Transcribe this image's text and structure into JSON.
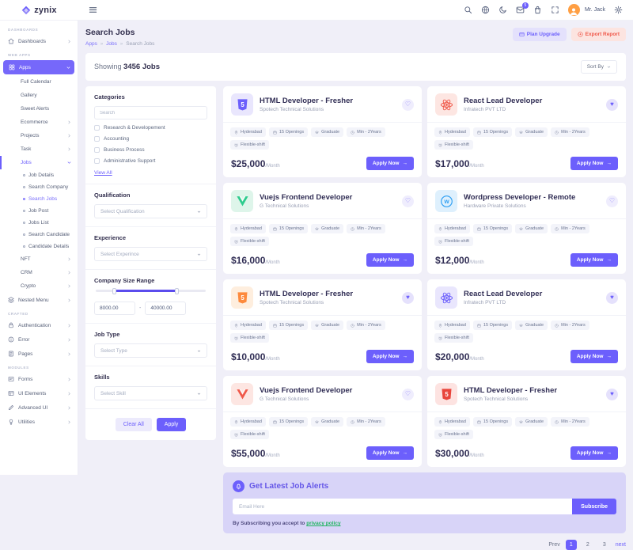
{
  "brand": {
    "name": "zynix",
    "logo_icon": "diamond-logo-icon"
  },
  "navbar": {
    "menu_icon": "hamburger-icon",
    "icons": [
      "search-icon",
      "language-icon",
      "moon-icon",
      "messages-icon",
      "cart-icon",
      "fullscreen-icon"
    ],
    "badge_count": "5",
    "badge_on": "messages-icon",
    "user_name": "Mr. Jack",
    "settings_icon": "settings-icon"
  },
  "sidebar": {
    "sections": [
      {
        "label": "DASHBOARDS",
        "items": [
          {
            "label": "Dashboards",
            "icon": "home-icon",
            "chevron": "right"
          }
        ]
      },
      {
        "label": "WEB APPS",
        "items": [
          {
            "label": "Apps",
            "icon": "grid-icon",
            "chevron": "down",
            "active": true
          },
          {
            "label": "Full Calendar",
            "indent": 1
          },
          {
            "label": "Gallery",
            "indent": 1
          },
          {
            "label": "Sweet Alerts",
            "indent": 1
          },
          {
            "label": "Ecommerce",
            "indent": 1,
            "chevron": "right"
          },
          {
            "label": "Projects",
            "indent": 1,
            "chevron": "right"
          },
          {
            "label": "Task",
            "indent": 1,
            "chevron": "right"
          },
          {
            "label": "Jobs",
            "indent": 1,
            "chevron": "down",
            "open": true
          },
          {
            "label": "Job Details",
            "indent": 2
          },
          {
            "label": "Search Company",
            "indent": 2
          },
          {
            "label": "Search Jobs",
            "indent": 2,
            "current": true
          },
          {
            "label": "Job Post",
            "indent": 2
          },
          {
            "label": "Jobs List",
            "indent": 2
          },
          {
            "label": "Search Candidate",
            "indent": 2
          },
          {
            "label": "Candidate Details",
            "indent": 2
          },
          {
            "label": "NFT",
            "indent": 1,
            "chevron": "right"
          },
          {
            "label": "CRM",
            "indent": 1,
            "chevron": "right"
          },
          {
            "label": "Crypto",
            "indent": 1,
            "chevron": "right"
          },
          {
            "label": "Nested Menu",
            "icon": "layers-icon",
            "chevron": "right"
          }
        ]
      },
      {
        "label": "CRAFTED",
        "items": [
          {
            "label": "Authentication",
            "icon": "lock-icon",
            "chevron": "right"
          },
          {
            "label": "Error",
            "icon": "info-icon",
            "chevron": "right"
          },
          {
            "label": "Pages",
            "icon": "pages-icon",
            "chevron": "right"
          }
        ]
      },
      {
        "label": "MODULES",
        "items": [
          {
            "label": "Forms",
            "icon": "forms-icon",
            "chevron": "right"
          },
          {
            "label": "UI Elements",
            "icon": "ui-icon",
            "chevron": "right"
          },
          {
            "label": "Advanced UI",
            "icon": "pen-icon",
            "chevron": "right"
          },
          {
            "label": "Utilities",
            "icon": "bulb-icon",
            "chevron": "right"
          }
        ]
      }
    ]
  },
  "page": {
    "title": "Search Jobs",
    "breadcrumb": [
      "Apps",
      "Jobs",
      "Search Jobs"
    ],
    "breadcrumb_separator": "»",
    "plan_upgrade_label": "Plan Upgrade",
    "export_report_label": "Export Report",
    "showing_prefix": "Showing",
    "showing_count": "3456 Jobs",
    "sort_by_label": "Sort By"
  },
  "filters": {
    "categories": {
      "title": "Categories",
      "search_placeholder": "Search",
      "options": [
        "Research & Developement",
        "Accounting",
        "Business Process",
        "Administrative Support"
      ],
      "view_all_label": "View All"
    },
    "qualification": {
      "title": "Qualification",
      "placeholder": "Select Qualification"
    },
    "experience": {
      "title": "Experience",
      "placeholder": "Select Experince"
    },
    "company_size": {
      "title": "Company Size Range",
      "min": "8000.00",
      "max": "40000.00",
      "dash": "-"
    },
    "job_type": {
      "title": "Job Type",
      "placeholder": "Select Type"
    },
    "skills": {
      "title": "Skills",
      "placeholder": "Select Skill"
    },
    "clear_label": "Clear All",
    "apply_label": "Apply"
  },
  "job_badges": [
    {
      "icon": "location-icon",
      "label": "Hyderabad"
    },
    {
      "icon": "calendar-icon",
      "label": "15 Openings"
    },
    {
      "icon": "graduate-icon",
      "label": "Graduate"
    },
    {
      "icon": "clock-icon",
      "label": "Min - 2Years"
    },
    {
      "icon": "alarm-icon",
      "label": "Flexible-shift"
    }
  ],
  "apply_label": "Apply Now",
  "apply_arrow": "→",
  "jobs": [
    {
      "title": "HTML Developer - Fresher",
      "company": "Spotech Technical Solutions",
      "icon": "html5-icon",
      "color": "#6c5ffc",
      "bg": "#e9e6fd",
      "price": "$25,000",
      "per": "/Month",
      "favorited": false
    },
    {
      "title": "React Lead Developer",
      "company": "Infratech PVT LTD",
      "icon": "react-icon",
      "color": "#f0594a",
      "bg": "#fde6e2",
      "price": "$17,000",
      "per": "/Month",
      "favorited": true
    },
    {
      "title": "Vuejs Frontend Developer",
      "company": "G Technical Solutions",
      "icon": "vuejs-icon",
      "color": "#2ecc8e",
      "bg": "#def5ea",
      "price": "$16,000",
      "per": "/Month",
      "favorited": false
    },
    {
      "title": "Wordpress Developer - Remote",
      "company": "Hardware Private Solutions",
      "icon": "wordpress-icon",
      "color": "#2b9ef3",
      "bg": "#def0fd",
      "price": "$12,000",
      "per": "/Month",
      "favorited": false
    },
    {
      "title": "HTML Developer - Fresher",
      "company": "Spotech Technical Solutions",
      "icon": "html5-icon",
      "color": "#fd8a3d",
      "bg": "#feeede",
      "price": "$10,000",
      "per": "/Month",
      "favorited": true
    },
    {
      "title": "React Lead Developer",
      "company": "Infratech PVT LTD",
      "icon": "react-icon",
      "color": "#6c5ffc",
      "bg": "#e9e6fd",
      "price": "$20,000",
      "per": "/Month",
      "favorited": true
    },
    {
      "title": "Vuejs Frontend Developer",
      "company": "G Technical Solutions",
      "icon": "vuejs-icon",
      "color": "#f0594a",
      "bg": "#fde6e2",
      "price": "$55,000",
      "per": "/Month",
      "favorited": false
    },
    {
      "title": "HTML Developer - Fresher",
      "company": "Spotech Technical Solutions",
      "icon": "html5-icon",
      "color": "#e8453c",
      "bg": "#fde3e1",
      "price": "$30,000",
      "per": "/Month",
      "favorited": true
    }
  ],
  "alerts": {
    "bell_icon": "bell-icon",
    "title": "Get Latest Job Alerts",
    "email_placeholder": "Email Here",
    "subscribe_label": "Subscribe",
    "disclaimer_prefix": "By Subscribing you accept to",
    "privacy_link": "privacy policy"
  },
  "pagination": {
    "prev_label": "Prev",
    "pages": [
      "1",
      "2",
      "3"
    ],
    "active_page": "1",
    "next_label": "next"
  },
  "colors": {
    "primary": "#6c5ffc",
    "danger": "#f0584a",
    "banner_bg": "#d8d4f8",
    "page_bg": "#f0eff8",
    "link_green": "#21b561"
  }
}
